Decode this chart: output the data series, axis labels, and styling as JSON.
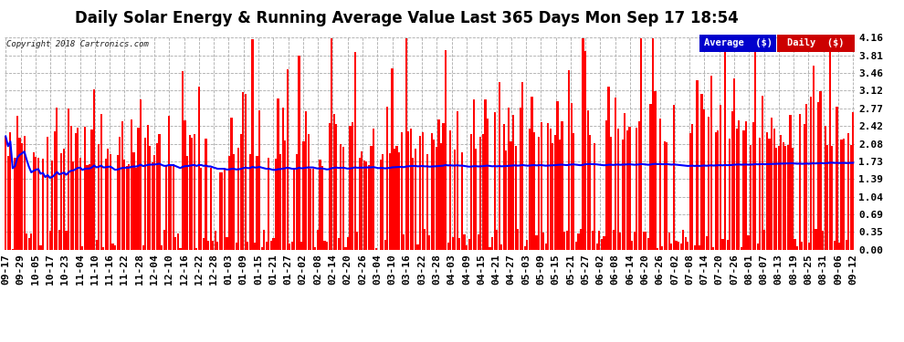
{
  "title": "Daily Solar Energy & Running Average Value Last 365 Days Mon Sep 17 18:54",
  "copyright": "Copyright 2018 Cartronics.com",
  "bar_color": "#ff0000",
  "avg_color": "#0000ff",
  "legend_avg_bg": "#0000cc",
  "legend_daily_bg": "#cc0000",
  "legend_avg_text": "Average  ($)",
  "legend_daily_text": "Daily  ($)",
  "ylim": [
    0.0,
    4.16
  ],
  "yticks": [
    0.0,
    0.35,
    0.69,
    1.04,
    1.39,
    1.73,
    2.08,
    2.42,
    2.77,
    3.12,
    3.46,
    3.81,
    4.16
  ],
  "grid_color": "#aaaaaa",
  "bg_color": "#ffffff",
  "n_days": 365,
  "title_fontsize": 12,
  "tick_fontsize": 8,
  "xlabel_dates": [
    "09-17",
    "09-29",
    "10-05",
    "10-17",
    "10-23",
    "11-04",
    "11-10",
    "11-16",
    "11-22",
    "11-28",
    "12-04",
    "12-10",
    "12-16",
    "12-22",
    "12-28",
    "01-03",
    "01-09",
    "01-15",
    "01-21",
    "01-27",
    "02-02",
    "02-08",
    "02-14",
    "02-20",
    "02-26",
    "03-04",
    "03-10",
    "03-16",
    "03-22",
    "03-28",
    "04-03",
    "04-09",
    "04-15",
    "04-21",
    "04-27",
    "05-03",
    "05-09",
    "05-15",
    "05-21",
    "05-27",
    "06-02",
    "06-08",
    "06-14",
    "06-20",
    "06-26",
    "07-02",
    "07-08",
    "07-14",
    "07-20",
    "07-26",
    "08-01",
    "08-07",
    "08-13",
    "08-19",
    "08-25",
    "08-31",
    "09-06",
    "09-12"
  ]
}
